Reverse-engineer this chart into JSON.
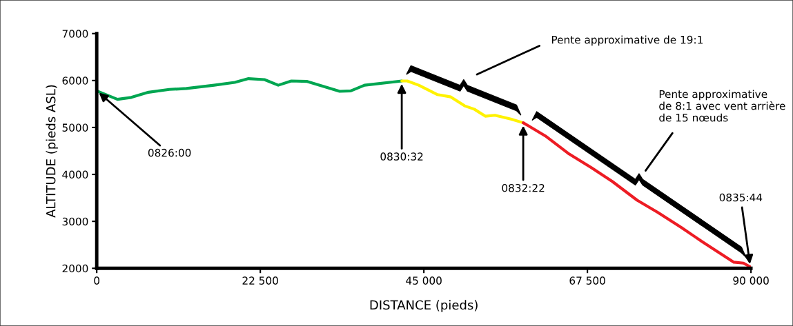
{
  "chart_data": {
    "type": "line",
    "xlabel": "DISTANCE (pieds)",
    "ylabel": "ALTITUDE (pieds ASL)",
    "xlim": [
      0,
      90000
    ],
    "ylim": [
      2000,
      7000
    ],
    "xticks": [
      0,
      {
        "value": 22500,
        "label": "22 500"
      },
      {
        "value": 45000,
        "label": "45 000"
      },
      {
        "value": 67500,
        "label": "67 500"
      },
      {
        "value": 90000,
        "label": "90 000"
      }
    ],
    "yticks": [
      2000,
      3000,
      4000,
      5000,
      6000,
      7000
    ],
    "grid": false,
    "marker": "none",
    "line_style": "solid",
    "series": [
      {
        "color": "#00a651",
        "x": [
          0,
          2850,
          4750,
          7120,
          9970,
          12340,
          16140,
          18990,
          20880,
          23070,
          24970,
          26770,
          28960,
          33420,
          34940,
          36840,
          41960
        ],
        "values": [
          5780,
          5600,
          5640,
          5750,
          5810,
          5830,
          5900,
          5960,
          6040,
          6020,
          5900,
          5990,
          5980,
          5770,
          5780,
          5900,
          5990
        ]
      },
      {
        "color": "#fff200",
        "x": [
          41960,
          42720,
          44300,
          46880,
          48710,
          50610,
          51930,
          53450,
          54780,
          56970,
          58670
        ],
        "values": [
          5990,
          5990,
          5900,
          5700,
          5650,
          5460,
          5390,
          5240,
          5260,
          5180,
          5100
        ]
      },
      {
        "color": "#ed1c24",
        "x": [
          58670,
          61710,
          64850,
          68080,
          70920,
          74340,
          77190,
          80410,
          82310,
          83260,
          85450,
          87640,
          88960,
          89910
        ],
        "values": [
          5100,
          4820,
          4450,
          4140,
          3850,
          3450,
          3190,
          2870,
          2670,
          2570,
          2350,
          2130,
          2110,
          2030
        ]
      }
    ],
    "annotations": [
      {
        "text": "0826:00",
        "x": 0,
        "y": 5780
      },
      {
        "text": "0830:32",
        "x": 41960,
        "y": 5990
      },
      {
        "text": "0832:22",
        "x": 58670,
        "y": 5100
      },
      {
        "text": "0835:44",
        "x": 89910,
        "y": 2030
      },
      "Pente approximative de 19:1",
      "Pente approximative\nde 8:1 avec vent arrière\nde 15 nœuds"
    ]
  }
}
